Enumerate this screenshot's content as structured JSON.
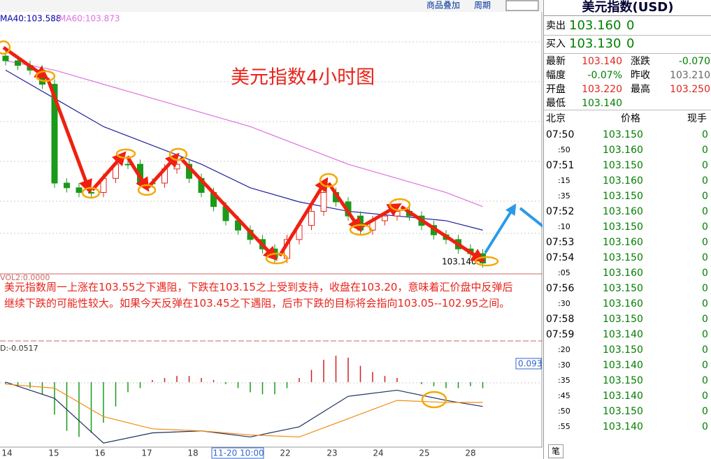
{
  "toolbar": {
    "overlay": "商品叠加",
    "period": "周期"
  },
  "chart": {
    "title": "美元指数4小时图",
    "ma_legend": [
      "MA40:103.588",
      "MA60:103.873"
    ],
    "vol_legend": "VOL2:0.0000",
    "annotation": "美元指数周一上涨在103.55之下遇阻，下跌在103.15之上受到支持，收盘在103.20，意味着汇价盘中反弹后继续下跌的可能性较大。如果今天反弹在103.45之下遇阻，后市下跌的目标将会指向103.05--102.95之间。",
    "last_price_label": "103.140",
    "macd_legend": "D:-0.0517",
    "macd_box": "0.093",
    "x_labels": [
      "14",
      "15",
      "16",
      "17",
      "18",
      "11-20 10:00",
      "22",
      "23",
      "24",
      "25",
      "28"
    ],
    "ylim": [
      103.12,
      103.61
    ],
    "candles": [
      [
        103.58,
        103.59,
        103.56,
        103.57
      ],
      [
        103.57,
        103.58,
        103.55,
        103.56
      ],
      [
        103.56,
        103.57,
        103.54,
        103.55
      ],
      [
        103.55,
        103.56,
        103.51,
        103.52
      ],
      [
        103.52,
        103.53,
        103.3,
        103.31
      ],
      [
        103.31,
        103.32,
        103.29,
        103.3
      ],
      [
        103.3,
        103.31,
        103.28,
        103.29
      ],
      [
        103.29,
        103.3,
        103.28,
        103.29
      ],
      [
        103.29,
        103.33,
        103.28,
        103.32
      ],
      [
        103.32,
        103.36,
        103.31,
        103.35
      ],
      [
        103.35,
        103.36,
        103.34,
        103.35
      ],
      [
        103.35,
        103.36,
        103.3,
        103.31
      ],
      [
        103.31,
        103.32,
        103.3,
        103.31
      ],
      [
        103.31,
        103.35,
        103.3,
        103.34
      ],
      [
        103.34,
        103.36,
        103.33,
        103.35
      ],
      [
        103.35,
        103.36,
        103.31,
        103.32
      ],
      [
        103.32,
        103.33,
        103.28,
        103.29
      ],
      [
        103.29,
        103.3,
        103.25,
        103.26
      ],
      [
        103.26,
        103.27,
        103.22,
        103.23
      ],
      [
        103.23,
        103.24,
        103.2,
        103.21
      ],
      [
        103.21,
        103.22,
        103.18,
        103.19
      ],
      [
        103.19,
        103.2,
        103.16,
        103.17
      ],
      [
        103.17,
        103.18,
        103.14,
        103.15
      ],
      [
        103.15,
        103.2,
        103.14,
        103.19
      ],
      [
        103.19,
        103.23,
        103.18,
        103.22
      ],
      [
        103.22,
        103.26,
        103.21,
        103.25
      ],
      [
        103.25,
        103.3,
        103.24,
        103.29
      ],
      [
        103.29,
        103.3,
        103.26,
        103.27
      ],
      [
        103.27,
        103.28,
        103.23,
        103.24
      ],
      [
        103.24,
        103.25,
        103.2,
        103.21
      ],
      [
        103.21,
        103.24,
        103.2,
        103.23
      ],
      [
        103.23,
        103.25,
        103.22,
        103.24
      ],
      [
        103.24,
        103.26,
        103.23,
        103.25
      ],
      [
        103.25,
        103.26,
        103.23,
        103.24
      ],
      [
        103.24,
        103.25,
        103.21,
        103.22
      ],
      [
        103.22,
        103.23,
        103.19,
        103.2
      ],
      [
        103.2,
        103.21,
        103.18,
        103.19
      ],
      [
        103.19,
        103.2,
        103.16,
        103.17
      ],
      [
        103.17,
        103.18,
        103.15,
        103.16
      ],
      [
        103.16,
        103.17,
        103.13,
        103.14
      ]
    ],
    "ma_index": [
      0,
      4,
      8,
      12,
      16,
      20,
      24,
      28,
      32,
      36,
      39
    ],
    "ma40": [
      103.55,
      103.49,
      103.43,
      103.39,
      103.35,
      103.3,
      103.27,
      103.25,
      103.24,
      103.23,
      103.21
    ],
    "ma60": [
      103.57,
      103.55,
      103.52,
      103.49,
      103.46,
      103.43,
      103.39,
      103.35,
      103.32,
      103.29,
      103.26
    ],
    "macd_ylim": [
      -0.32,
      0.12
    ],
    "macd_bars": [
      -0.01,
      -0.02,
      -0.03,
      -0.06,
      -0.16,
      -0.24,
      -0.27,
      -0.25,
      -0.2,
      -0.12,
      -0.05,
      -0.03,
      0.01,
      0.02,
      0.03,
      0.03,
      0.02,
      0.01,
      -0.01,
      -0.03,
      -0.05,
      -0.06,
      -0.06,
      -0.03,
      0.02,
      0.06,
      0.11,
      0.13,
      0.12,
      0.08,
      0.05,
      0.03,
      0.02,
      0,
      -0.01,
      -0.02,
      -0.03,
      -0.03,
      -0.02,
      -0.03
    ],
    "dif": [
      0,
      -0.08,
      -0.3,
      -0.25,
      -0.24,
      -0.27,
      -0.22,
      -0.07,
      -0.04,
      -0.09,
      -0.12
    ],
    "dea": [
      -0.01,
      -0.03,
      -0.17,
      -0.23,
      -0.24,
      -0.26,
      -0.27,
      -0.18,
      -0.09,
      -0.1,
      -0.1
    ]
  },
  "quote": {
    "title": "美元指数(USD)",
    "sell": [
      "卖出",
      "103.160",
      "0"
    ],
    "buy": [
      "买入",
      "103.130",
      "0"
    ],
    "stats": [
      [
        "最新",
        "103.140",
        "涨跌",
        "-0.070"
      ],
      [
        "幅度",
        "-0.07%",
        "昨收",
        "103.210"
      ],
      [
        "开盘",
        "103.220",
        "最高",
        "103.250"
      ],
      [
        "最低",
        "103.140",
        "",
        ""
      ]
    ],
    "ticks_header": [
      "北京",
      "价格",
      "现手"
    ],
    "ticks": [
      [
        "07:50",
        "103.150",
        "0"
      ],
      [
        ":50",
        "103.160",
        "0"
      ],
      [
        "07:51",
        "103.150",
        "0"
      ],
      [
        ":15",
        "103.160",
        "0"
      ],
      [
        ":35",
        "103.150",
        "0"
      ],
      [
        "07:52",
        "103.160",
        "0"
      ],
      [
        ":10",
        "103.150",
        "0"
      ],
      [
        "07:53",
        "103.160",
        "0"
      ],
      [
        "07:54",
        "103.150",
        "0"
      ],
      [
        ":05",
        "103.160",
        "0"
      ],
      [
        "07:56",
        "103.150",
        "0"
      ],
      [
        ":30",
        "103.160",
        "0"
      ],
      [
        "07:58",
        "103.150",
        "0"
      ],
      [
        "07:59",
        "103.140",
        "0"
      ],
      [
        ":20",
        "103.150",
        "0"
      ],
      [
        ":30",
        "103.140",
        "0"
      ],
      [
        ":35",
        "103.150",
        "0"
      ],
      [
        ":45",
        "103.140",
        "0"
      ],
      [
        ":50",
        "103.150",
        "0"
      ],
      [
        ":55",
        "103.140",
        "0"
      ]
    ],
    "tab": "笔"
  }
}
